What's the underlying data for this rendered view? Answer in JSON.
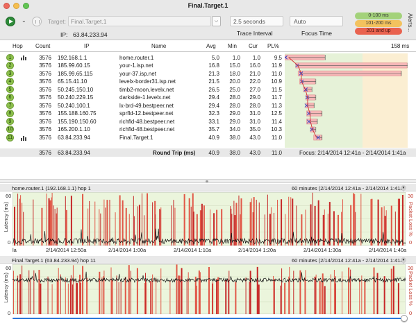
{
  "window": {
    "title": "Final.Target.1"
  },
  "toolbar": {
    "target_label": "Target:",
    "target_value": "Final.Target.1",
    "target_combo_icon": "chevron-updown-icon",
    "ip_label": "IP:",
    "ip_value": "63.84.233.94",
    "interval_value": "2.5 seconds",
    "interval_label": "Trace Interval",
    "focus_value": "Auto",
    "focus_label": "Focus Time",
    "legend": [
      {
        "label": "0-100 ms",
        "color": "#a3d27a"
      },
      {
        "label": "101-200 ms",
        "color": "#f3c25e"
      },
      {
        "label": "201 and up",
        "color": "#e9624f"
      }
    ],
    "alerts_label": "Alerts..."
  },
  "table": {
    "headers": {
      "hop": "Hop",
      "count": "Count",
      "ip": "IP",
      "name": "Name",
      "avg": "Avg",
      "min": "Min",
      "cur": "Cur",
      "pl": "PL%",
      "graph_max": "158 ms"
    },
    "graph_scale_max_ms": 158,
    "rows": [
      {
        "hop": "1",
        "count": "3576",
        "ip": "192.168.1.1",
        "name": "home.router.1",
        "avg": "5.0",
        "min": "1.0",
        "cur": "1.0",
        "pl": "9.5",
        "has_graph_icon": true,
        "max_ms": 52
      },
      {
        "hop": "2",
        "count": "3576",
        "ip": "185.99.60.15",
        "name": "your-1.isp.net",
        "avg": "16.8",
        "min": "15.0",
        "cur": "16.0",
        "pl": "11.9",
        "has_graph_icon": false,
        "max_ms": 158
      },
      {
        "hop": "3",
        "count": "3576",
        "ip": "185.99.65.115",
        "name": "your-37.isp.net",
        "avg": "21.3",
        "min": "18.0",
        "cur": "21.0",
        "pl": "11.0",
        "has_graph_icon": false,
        "max_ms": 150
      },
      {
        "hop": "4",
        "count": "3576",
        "ip": "65.15.41.10",
        "name": "levelx-border31.isp.net",
        "avg": "21.5",
        "min": "20.0",
        "cur": "22.0",
        "pl": "10.9",
        "has_graph_icon": false,
        "max_ms": 40
      },
      {
        "hop": "5",
        "count": "3576",
        "ip": "50.245.150.10",
        "name": "timb2-moon.levelx.net",
        "avg": "26.5",
        "min": "25.0",
        "cur": "27.0",
        "pl": "11.5",
        "has_graph_icon": false,
        "max_ms": 35
      },
      {
        "hop": "6",
        "count": "3576",
        "ip": "50.240.229.15",
        "name": "darkside-1.levelx.net",
        "avg": "29.4",
        "min": "28.0",
        "cur": "29.0",
        "pl": "11.7",
        "has_graph_icon": false,
        "max_ms": 40
      },
      {
        "hop": "7",
        "count": "3576",
        "ip": "50.240.100.1",
        "name": "lx-brd-49.bestpeer.net",
        "avg": "29.4",
        "min": "28.0",
        "cur": "28.0",
        "pl": "11.3",
        "has_graph_icon": false,
        "max_ms": 38
      },
      {
        "hop": "8",
        "count": "3576",
        "ip": "155.188.160.75",
        "name": "sprfld-12.bestpeer.net",
        "avg": "32.3",
        "min": "29.0",
        "cur": "31.0",
        "pl": "12.5",
        "has_graph_icon": false,
        "max_ms": 48
      },
      {
        "hop": "9",
        "count": "3576",
        "ip": "155.190.150.60",
        "name": "richfld-48.bestpeer.net",
        "avg": "33.1",
        "min": "29.0",
        "cur": "31.0",
        "pl": "11.4",
        "has_graph_icon": false,
        "max_ms": 42
      },
      {
        "hop": "10",
        "count": "3576",
        "ip": "165.200.1.10",
        "name": "richfld-48.bestpeer.net",
        "avg": "35.7",
        "min": "34.0",
        "cur": "35.0",
        "pl": "10.3",
        "has_graph_icon": false,
        "max_ms": 40
      },
      {
        "hop": "11",
        "count": "3576",
        "ip": "63.84.233.94",
        "name": "Final.Target.1",
        "avg": "40.9",
        "min": "38.0",
        "cur": "43.0",
        "pl": "11.0",
        "has_graph_icon": true,
        "max_ms": 48
      }
    ],
    "round_trip": {
      "count": "3576",
      "ip": "63.84.233.94",
      "label": "Round Trip (ms)",
      "avg": "40.9",
      "min": "38.0",
      "cur": "43.0",
      "pl": "11.0",
      "focus_text": "Focus: 2/14/2014 12:41a - 2/14/2014 1:41a"
    }
  },
  "timeline_graphs": [
    {
      "title": "home.router.1 (192.168.1.1) hop 1",
      "range": "60 minutes (2/14/2014 12:41a - 2/14/2014 1:41a)",
      "y_axis_label": "Latency (ms)",
      "y_max": "60",
      "y_min": "0",
      "loss_axis_label": "Packet Loss %",
      "loss_max": "30",
      "loss_min": "0",
      "x_ticks": [
        "la",
        "2/14/2014 12:50a",
        "2/14/2014 1:00a",
        "2/14/2014 1:10a",
        "2/14/2014 1:20a",
        "2/14/2014 1:30a",
        "2/14/2014 1:40a"
      ],
      "baseline_ms": 5
    },
    {
      "title": "Final.Target.1 (63.84.233.94) hop 11",
      "range": "60 minutes (2/14/2014 12:41a - 2/14/2014 1:41a)",
      "y_axis_label": "Latency (ms)",
      "y_max": "60",
      "y_min": "0",
      "loss_axis_label": "Packet Loss %",
      "loss_max": "30",
      "loss_min": "0",
      "x_ticks": [],
      "baseline_ms": 41
    }
  ]
}
